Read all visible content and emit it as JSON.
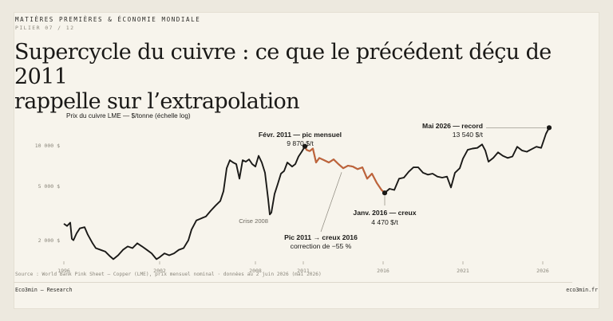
{
  "header": {
    "kicker": "MATIÈRES PREMIÈRES & ÉCONOMIE MONDIALE",
    "pillar": "PILIER 07 / 12",
    "title_line1": "Supercycle du cuivre : ce que le précédent déçu de 2011",
    "title_line2": "rappelle sur l’extrapolation"
  },
  "footer": {
    "source": "Source : World Bank Pink Sheet — Copper (LME), prix mensuel nominal · données au 2 juin 2026 (mai 2026)",
    "brand": "Eco3min — Research",
    "site": "eco3min.fr"
  },
  "chart_data": {
    "type": "line",
    "y_axis_title": "Prix du cuivre LME — $/tonne (échelle log)",
    "y_scale": "log",
    "ylim": [
      1400,
      16000
    ],
    "xlim": [
      1996,
      2026.5
    ],
    "y_ticks": [
      {
        "value": 2000,
        "label": "2 000 $"
      },
      {
        "value": 5000,
        "label": "5 000 $"
      },
      {
        "value": 10000,
        "label": "10 000 $"
      }
    ],
    "x_ticks": [
      "1996",
      "2002",
      "2008",
      "2011",
      "2016",
      "2021",
      "2026"
    ],
    "grid": false,
    "colors": {
      "main": "#1a1917",
      "highlight": "#c0643b",
      "connector": "#8b877c"
    },
    "series": [
      {
        "name": "",
        "x": [
          1996.0,
          1996.2,
          1996.4,
          1996.5,
          1996.6,
          1996.8,
          1997.0,
          1997.3,
          1997.5,
          1997.8,
          1998.0,
          1998.3,
          1998.6,
          1998.9,
          1999.1,
          1999.4,
          1999.7,
          2000.0,
          2000.3,
          2000.6,
          2000.9,
          2001.2,
          2001.5,
          2001.8,
          2002.0,
          2002.3,
          2002.6,
          2002.9,
          2003.2,
          2003.5,
          2003.8,
          2004.0,
          2004.3,
          2004.6,
          2004.9,
          2005.2,
          2005.5,
          2005.8,
          2006.0,
          2006.2,
          2006.4,
          2006.6,
          2006.8,
          2007.0,
          2007.2,
          2007.4,
          2007.6,
          2007.8,
          2008.0,
          2008.2,
          2008.4,
          2008.6,
          2008.8,
          2008.9,
          2009.0,
          2009.2,
          2009.4,
          2009.6,
          2009.8,
          2010.0,
          2010.3,
          2010.5,
          2010.7,
          2010.9,
          2011.1,
          2011.2,
          2011.4,
          2011.6,
          2011.8,
          2012.0,
          2012.3,
          2012.6,
          2012.9,
          2013.2,
          2013.5,
          2013.8,
          2014.1,
          2014.4,
          2014.7,
          2015.0,
          2015.3,
          2015.6,
          2015.9,
          2016.1,
          2016.4,
          2016.7,
          2017.0,
          2017.3,
          2017.6,
          2017.9,
          2018.2,
          2018.5,
          2018.8,
          2019.1,
          2019.4,
          2019.7,
          2020.0,
          2020.25,
          2020.5,
          2020.8,
          2021.0,
          2021.3,
          2021.6,
          2021.9,
          2022.2,
          2022.4,
          2022.6,
          2022.9,
          2023.2,
          2023.5,
          2023.8,
          2024.1,
          2024.4,
          2024.7,
          2025.0,
          2025.3,
          2025.6,
          2025.9,
          2026.2,
          2026.4
        ],
        "values": [
          2650,
          2550,
          2700,
          2050,
          2000,
          2250,
          2450,
          2500,
          2200,
          1900,
          1750,
          1700,
          1650,
          1520,
          1450,
          1550,
          1700,
          1800,
          1750,
          1900,
          1800,
          1700,
          1600,
          1450,
          1500,
          1600,
          1550,
          1600,
          1700,
          1750,
          2000,
          2400,
          2800,
          2900,
          3000,
          3300,
          3600,
          3900,
          4600,
          6800,
          7800,
          7500,
          7300,
          5700,
          7800,
          7600,
          7900,
          7300,
          7000,
          8400,
          7500,
          6300,
          4000,
          3100,
          3200,
          4400,
          5200,
          6200,
          6500,
          7500,
          7000,
          7300,
          8300,
          9000,
          9870,
          9300,
          9100,
          9500,
          7500,
          8100,
          7800,
          7500,
          7900,
          7300,
          6800,
          7100,
          7000,
          6700,
          6900,
          5700,
          6200,
          5300,
          4700,
          4470,
          4800,
          4700,
          5700,
          5800,
          6400,
          6900,
          6900,
          6300,
          6100,
          6200,
          5900,
          5800,
          5900,
          4900,
          6300,
          6800,
          8000,
          9300,
          9500,
          9600,
          10200,
          9200,
          7600,
          8100,
          8900,
          8400,
          8100,
          8300,
          9800,
          9200,
          9000,
          9400,
          9800,
          9600,
          12200,
          13540
        ]
      }
    ],
    "highlight": {
      "from": 2011.1,
      "to": 2016.1
    },
    "annotations": [
      {
        "key": "peak",
        "x": 2011.1,
        "y": 9870,
        "title": "Févr. 2011 — pic mensuel",
        "value": "9 870 $/t"
      },
      {
        "key": "trough",
        "x": 2016.1,
        "y": 4470,
        "title": "Janv. 2016 — creux",
        "value": "4 470 $/t"
      },
      {
        "key": "record",
        "x": 2026.4,
        "y": 13540,
        "title": "Mai 2026 — record",
        "value": "13 540 $/t"
      },
      {
        "key": "decline",
        "x": 2013.5,
        "y": 6800,
        "title": "Pic 2011 → creux 2016",
        "value": "correction de −55 %"
      },
      {
        "key": "crisis",
        "x": 2008.9,
        "y": 3100,
        "title": "Crise 2008",
        "value": ""
      }
    ]
  }
}
